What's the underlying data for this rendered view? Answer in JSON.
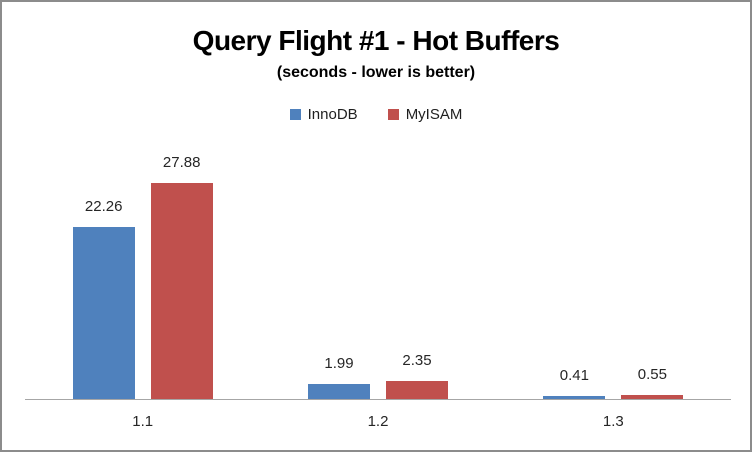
{
  "chart_data": {
    "type": "bar",
    "title": "Query Flight #1 - Hot Buffers",
    "subtitle": "(seconds - lower is better)",
    "categories": [
      "1.1",
      "1.2",
      "1.3"
    ],
    "series": [
      {
        "name": "InnoDB",
        "color": "#4F81BD",
        "values": [
          22.26,
          1.99,
          0.41
        ]
      },
      {
        "name": "MyISAM",
        "color": "#C0504D",
        "values": [
          27.88,
          2.35,
          0.55
        ]
      }
    ],
    "value_labels": [
      "22.26",
      "27.88",
      "1.99",
      "2.35",
      "0.41",
      "0.55"
    ],
    "ylabel": "",
    "xlabel": "",
    "ylim": [
      0,
      30
    ],
    "grid": false,
    "legend_position": "top-center",
    "axis_line_color": "#A6A6A6",
    "value_label_color": "#262626",
    "frame_border_color": "#8C8C8C",
    "background_color": "#FFFFFF"
  }
}
